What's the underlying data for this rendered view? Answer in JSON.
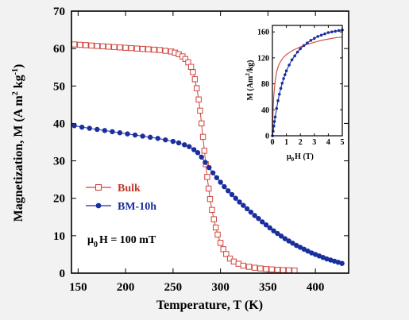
{
  "chart_data": [
    {
      "type": "scatter",
      "panel": "main",
      "xlabel": "Temperature, T (K)",
      "ylabel": {
        "text": "Magnetization, M (A m",
        "sup1": "2",
        "mid": " kg",
        "sup2": "-1",
        "end": ")"
      },
      "xlim": [
        143,
        435
      ],
      "ylim": [
        0,
        70
      ],
      "xticks": [
        150,
        200,
        250,
        300,
        350,
        400
      ],
      "yticks": [
        0,
        10,
        20,
        30,
        40,
        50,
        60,
        70
      ],
      "grid": false,
      "legend_position": "left",
      "annotation": {
        "mu": "μ",
        "sub": "0",
        "rest": "H = 100 mT"
      },
      "series": [
        {
          "name": "Bulk",
          "color": "#d0443c",
          "marker": "open-square",
          "x": [
            146,
            152,
            158,
            164,
            170,
            176,
            182,
            188,
            194,
            200,
            206,
            212,
            218,
            224,
            230,
            236,
            242,
            248,
            252,
            256,
            260,
            263,
            266,
            269,
            271,
            273,
            275,
            277,
            278.5,
            280,
            281.5,
            283,
            284.5,
            286,
            287.5,
            289,
            291,
            293,
            295,
            297,
            300,
            303,
            306,
            310,
            314,
            319,
            324,
            330,
            336,
            342,
            348,
            354,
            360,
            366,
            372,
            378
          ],
          "y": [
            61.1,
            61.0,
            60.9,
            60.8,
            60.7,
            60.6,
            60.5,
            60.4,
            60.3,
            60.2,
            60.1,
            60.0,
            59.9,
            59.8,
            59.7,
            59.6,
            59.4,
            59.2,
            58.9,
            58.5,
            57.9,
            57.2,
            56.3,
            55.1,
            53.7,
            51.8,
            49.4,
            46.4,
            43.4,
            40.0,
            36.4,
            32.7,
            29.1,
            25.7,
            22.6,
            19.8,
            16.9,
            14.4,
            12.2,
            10.3,
            8.1,
            6.4,
            5.1,
            3.9,
            3.1,
            2.5,
            2.0,
            1.7,
            1.45,
            1.25,
            1.1,
            1.0,
            0.9,
            0.82,
            0.76,
            0.7
          ]
        },
        {
          "name": "BM-10h",
          "color": "#1a2f9e",
          "marker": "filled-circle",
          "x": [
            146,
            154,
            162,
            170,
            178,
            186,
            194,
            202,
            210,
            218,
            226,
            234,
            242,
            250,
            256,
            262,
            267,
            272,
            276,
            280,
            284,
            288,
            292,
            296,
            300,
            304,
            308,
            312,
            316,
            320,
            324,
            328,
            332,
            336,
            340,
            344,
            348,
            352,
            356,
            360,
            364,
            368,
            372,
            376,
            380,
            384,
            388,
            392,
            396,
            400,
            404,
            408,
            412,
            416,
            420,
            424,
            428
          ],
          "y": [
            39.4,
            39.0,
            38.7,
            38.4,
            38.1,
            37.8,
            37.5,
            37.2,
            36.9,
            36.6,
            36.3,
            36.0,
            35.6,
            35.2,
            34.8,
            34.3,
            33.8,
            33.0,
            32.2,
            31.0,
            29.6,
            28.2,
            26.8,
            25.5,
            24.3,
            23.1,
            22.0,
            21.0,
            20.0,
            19.0,
            18.1,
            17.2,
            16.3,
            15.4,
            14.6,
            13.7,
            12.9,
            12.1,
            11.3,
            10.6,
            9.9,
            9.2,
            8.6,
            8.0,
            7.4,
            6.9,
            6.4,
            5.9,
            5.4,
            5.0,
            4.6,
            4.2,
            3.8,
            3.5,
            3.2,
            2.9,
            2.6
          ]
        }
      ]
    },
    {
      "type": "scatter",
      "panel": "inset",
      "xlabel": {
        "mu": "μ",
        "sub": "0",
        "rest": "H (T)"
      },
      "ylabel": {
        "text": "M (Am",
        "sup": "2",
        "end": "/kg)"
      },
      "xlim": [
        0,
        5
      ],
      "ylim": [
        0,
        170
      ],
      "xticks": [
        0,
        1,
        2,
        3,
        4,
        5
      ],
      "yticks": [
        0,
        40,
        80,
        120,
        160
      ],
      "grid": false,
      "series": [
        {
          "name": "Bulk",
          "color": "#d0443c",
          "marker": "line",
          "x": [
            0,
            0.05,
            0.1,
            0.2,
            0.3,
            0.4,
            0.5,
            0.6,
            0.8,
            1.0,
            1.2,
            1.5,
            2.0,
            2.5,
            3.0,
            3.5,
            4.0,
            4.5,
            5.0
          ],
          "y": [
            0,
            40,
            62,
            85,
            98,
            106,
            111,
            115,
            121,
            125,
            128,
            132,
            137,
            141,
            144,
            147,
            149,
            151,
            152
          ]
        },
        {
          "name": "BM-10h",
          "color": "#1a2f9e",
          "marker": "filled-circle",
          "x": [
            0,
            0.05,
            0.1,
            0.15,
            0.2,
            0.3,
            0.4,
            0.5,
            0.6,
            0.7,
            0.8,
            0.9,
            1.0,
            1.2,
            1.4,
            1.6,
            1.8,
            2.0,
            2.25,
            2.5,
            2.75,
            3.0,
            3.25,
            3.5,
            3.75,
            4.0,
            4.25,
            4.5,
            4.75,
            5.0
          ],
          "y": [
            0,
            7,
            15,
            22,
            29,
            42,
            54,
            64,
            73,
            81,
            88,
            94,
            100,
            109,
            117,
            123,
            129,
            134,
            139,
            143,
            147,
            150,
            153,
            155,
            157,
            159,
            160,
            161,
            162,
            163
          ]
        }
      ]
    }
  ]
}
